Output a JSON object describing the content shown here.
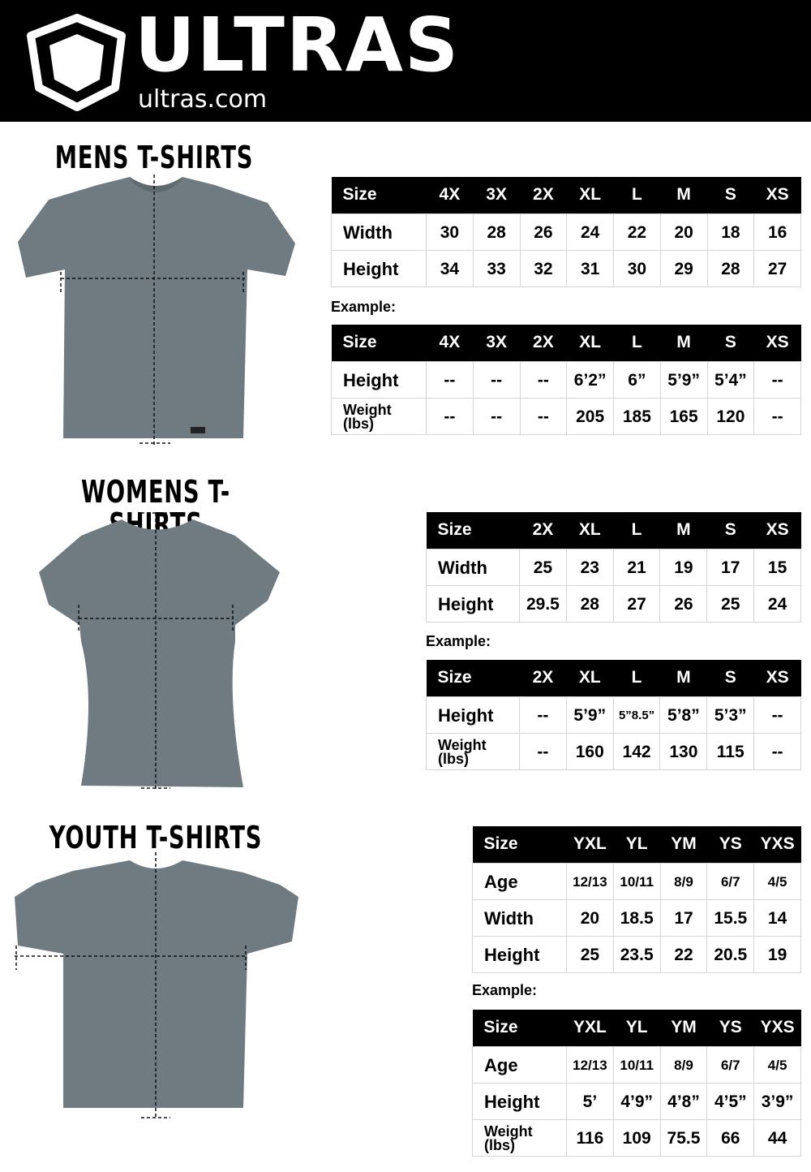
{
  "header": {
    "brand": "ULTRAS",
    "url": "ultras.com",
    "logo_icon": "shield-logo-icon"
  },
  "colors": {
    "header_bg": "#000000",
    "shirt": "#6f7b80"
  },
  "sections": [
    {
      "title": "MENS T-SHIRTS",
      "example_label": "Example:",
      "measurements": {
        "headers": [
          "Size",
          "4X",
          "3X",
          "2X",
          "XL",
          "L",
          "M",
          "S",
          "XS"
        ],
        "rows": [
          {
            "label": "Width",
            "values": [
              "30",
              "28",
              "26",
              "24",
              "22",
              "20",
              "18",
              "16"
            ]
          },
          {
            "label": "Height",
            "values": [
              "34",
              "33",
              "32",
              "31",
              "30",
              "29",
              "28",
              "27"
            ]
          }
        ]
      },
      "example": {
        "headers": [
          "Size",
          "4X",
          "3X",
          "2X",
          "XL",
          "L",
          "M",
          "S",
          "XS"
        ],
        "rows": [
          {
            "label": "Height",
            "values": [
              "--",
              "--",
              "--",
              "6’2”",
              "6”",
              "5’9”",
              "5’4”",
              "--"
            ]
          },
          {
            "label": "Weight (lbs)",
            "values": [
              "--",
              "--",
              "--",
              "205",
              "185",
              "165",
              "120",
              "--"
            ]
          }
        ]
      }
    },
    {
      "title": "WOMENS T-SHIRTS",
      "example_label": "Example:",
      "measurements": {
        "headers": [
          "Size",
          "2X",
          "XL",
          "L",
          "M",
          "S",
          "XS"
        ],
        "rows": [
          {
            "label": "Width",
            "values": [
              "25",
              "23",
              "21",
              "19",
              "17",
              "15"
            ]
          },
          {
            "label": "Height",
            "values": [
              "29.5",
              "28",
              "27",
              "26",
              "25",
              "24"
            ]
          }
        ]
      },
      "example": {
        "headers": [
          "Size",
          "2X",
          "XL",
          "L",
          "M",
          "S",
          "XS"
        ],
        "rows": [
          {
            "label": "Height",
            "values": [
              "--",
              "5’9”",
              "5”8.5”",
              "5’8”",
              "5’3”",
              "--"
            ]
          },
          {
            "label": "Weight (lbs)",
            "values": [
              "--",
              "160",
              "142",
              "130",
              "115",
              "--"
            ]
          }
        ]
      }
    },
    {
      "title": "YOUTH T-SHIRTS",
      "example_label": "Example:",
      "measurements": {
        "headers": [
          "Size",
          "YXL",
          "YL",
          "YM",
          "YS",
          "YXS"
        ],
        "rows": [
          {
            "label": "Age",
            "values": [
              "12/13",
              "10/11",
              "8/9",
              "6/7",
              "4/5"
            ]
          },
          {
            "label": "Width",
            "values": [
              "20",
              "18.5",
              "17",
              "15.5",
              "14"
            ]
          },
          {
            "label": "Height",
            "values": [
              "25",
              "23.5",
              "22",
              "20.5",
              "19"
            ]
          }
        ]
      },
      "example": {
        "headers": [
          "Size",
          "YXL",
          "YL",
          "YM",
          "YS",
          "YXS"
        ],
        "rows": [
          {
            "label": "Age",
            "values": [
              "12/13",
              "10/11",
              "8/9",
              "6/7",
              "4/5"
            ]
          },
          {
            "label": "Height",
            "values": [
              "5’",
              "4’9”",
              "4’8”",
              "4’5”",
              "3’9”"
            ]
          },
          {
            "label": "Weight (lbs)",
            "values": [
              "116",
              "109",
              "75.5",
              "66",
              "44"
            ]
          }
        ]
      }
    }
  ]
}
